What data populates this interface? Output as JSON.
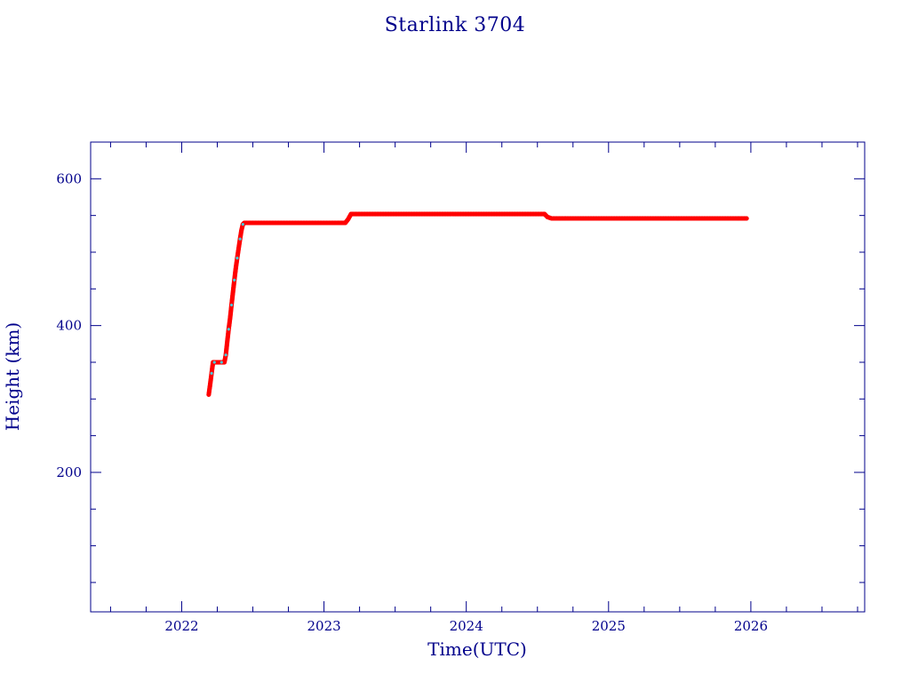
{
  "chart_data": {
    "type": "scatter",
    "title": "Starlink 3704",
    "xlabel": "Time(UTC)",
    "ylabel": "Height (km)",
    "xlim": [
      2021.36,
      2026.8
    ],
    "ylim": [
      10,
      650
    ],
    "xticks": [
      2022,
      2023,
      2024,
      2025,
      2026
    ],
    "yticks": [
      200,
      400,
      600
    ],
    "grid": false,
    "legend": "none",
    "colors": {
      "axis": "#00008b",
      "points": "#ff0000",
      "highlight": "#48c8d8"
    },
    "series": [
      {
        "x": [
          2022.19,
          2022.2,
          2022.21,
          2022.22,
          2022.23,
          2022.25,
          2022.28,
          2022.3,
          2022.31,
          2022.32,
          2022.33,
          2022.34,
          2022.35,
          2022.36,
          2022.37,
          2022.38,
          2022.39,
          2022.4,
          2022.41,
          2022.42,
          2022.43,
          2022.44,
          2022.5,
          2022.6,
          2022.7,
          2022.8,
          2022.9,
          2023.0,
          2023.1,
          2023.15,
          2023.17,
          2023.19,
          2023.25,
          2023.4,
          2023.6,
          2023.8,
          2024.0,
          2024.2,
          2024.4,
          2024.55,
          2024.57,
          2024.6,
          2024.7,
          2024.9,
          2025.1,
          2025.3,
          2025.5,
          2025.7,
          2025.9,
          2025.97
        ],
        "y": [
          306,
          320,
          335,
          350,
          350,
          350,
          350,
          350,
          360,
          378,
          395,
          410,
          428,
          445,
          462,
          478,
          492,
          505,
          518,
          530,
          538,
          540,
          540,
          540,
          540,
          540,
          540,
          540,
          540,
          540,
          545,
          552,
          552,
          552,
          552,
          552,
          552,
          552,
          552,
          552,
          548,
          546,
          546,
          546,
          546,
          546,
          546,
          546,
          546,
          546
        ]
      }
    ]
  }
}
